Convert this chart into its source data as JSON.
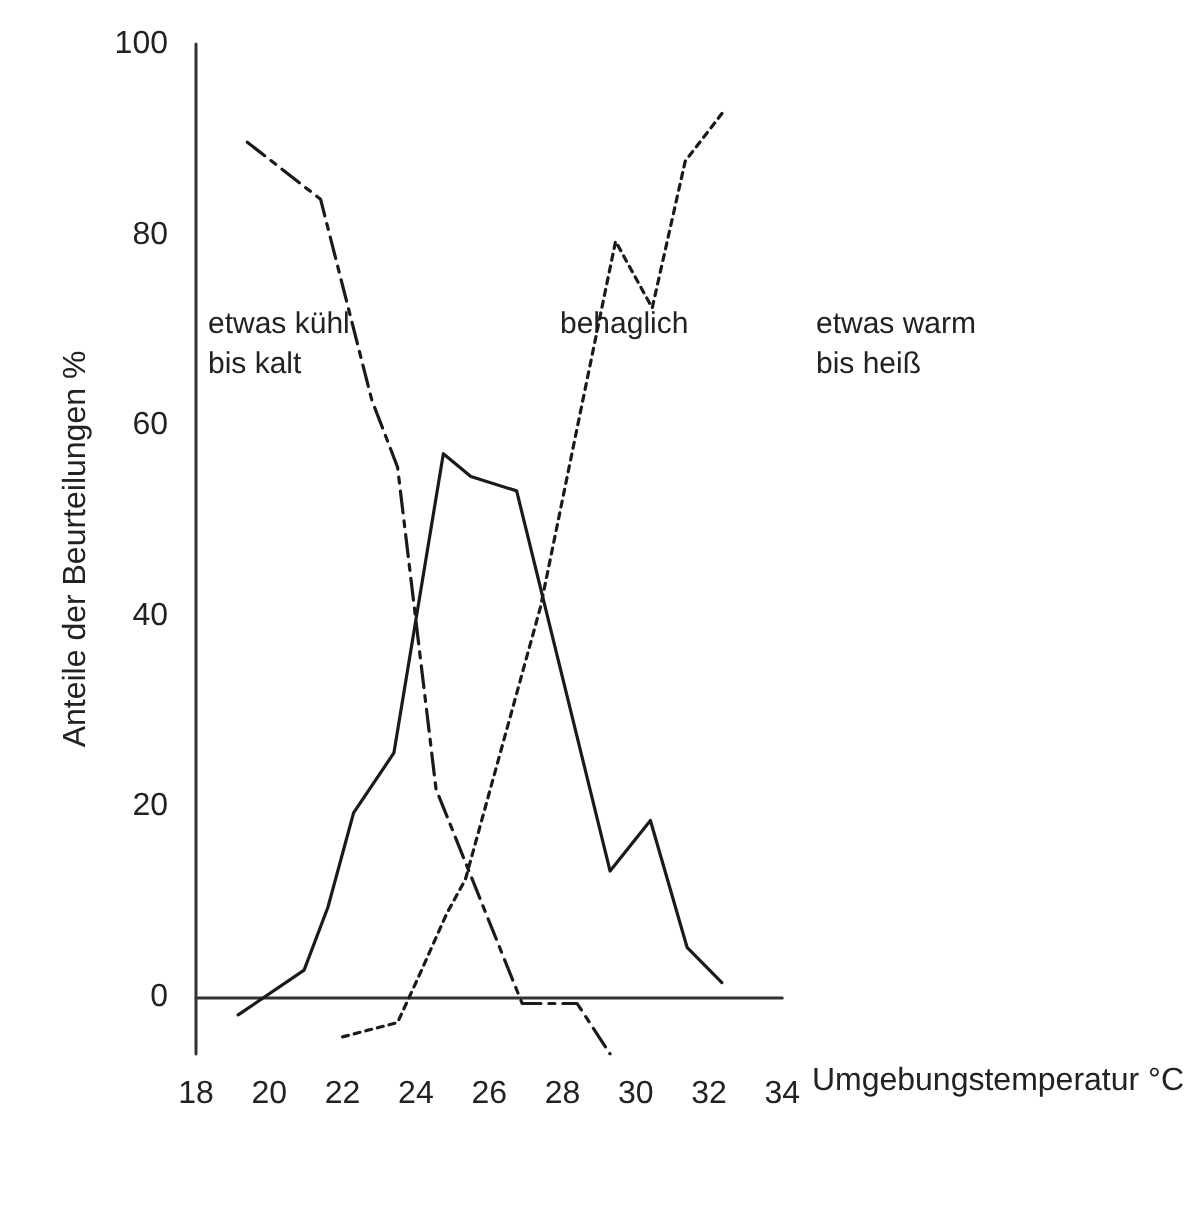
{
  "chart_data": {
    "type": "line",
    "xlabel": "Umgebungstemperatur °C",
    "ylabel": "Anteile der Beurteilungen %",
    "xlim": [
      18,
      34
    ],
    "xticks": [
      18,
      20,
      22,
      24,
      26,
      28,
      30,
      32,
      34
    ],
    "ylim": [
      -6,
      100
    ],
    "yticks": [
      0,
      20,
      40,
      60,
      80,
      100
    ],
    "grid": false,
    "marker": "none",
    "series": [
      {
        "color": "#1a1a1a",
        "line_style": "dashed",
        "x": [
          19.4,
          21.4,
          22.8,
          23.5,
          24.55,
          26.9,
          28.4,
          29.3
        ],
        "values": [
          89.7,
          83.7,
          62.6,
          55.6,
          21.8,
          -0.7,
          -0.7,
          -6
        ]
      },
      {
        "color": "#1a1a1a",
        "line_style": "solid",
        "x": [
          19.15,
          20.95,
          21.6,
          22.3,
          23.4,
          24.75,
          25.5,
          26.75,
          29.3,
          30.4,
          31.4,
          32.35
        ],
        "values": [
          -1.9,
          2.8,
          9.4,
          19.3,
          25.6,
          57,
          54.6,
          53.1,
          13.2,
          18.5,
          5.2,
          1.5
        ]
      },
      {
        "color": "#1a1a1a",
        "line_style": "dotted",
        "x": [
          22,
          23.5,
          24.05,
          24.85,
          25.35,
          27.4,
          28.55,
          29.45,
          30.45,
          31.35,
          32.45
        ],
        "values": [
          -4.2,
          -2.7,
          1.9,
          8.8,
          12.3,
          40.9,
          62.5,
          79.3,
          72.3,
          87.7,
          93.2
        ]
      }
    ],
    "annotations": [
      "etwas kühl\nbis kalt",
      "behaglich",
      "etwas warm\nbis heiß"
    ]
  }
}
